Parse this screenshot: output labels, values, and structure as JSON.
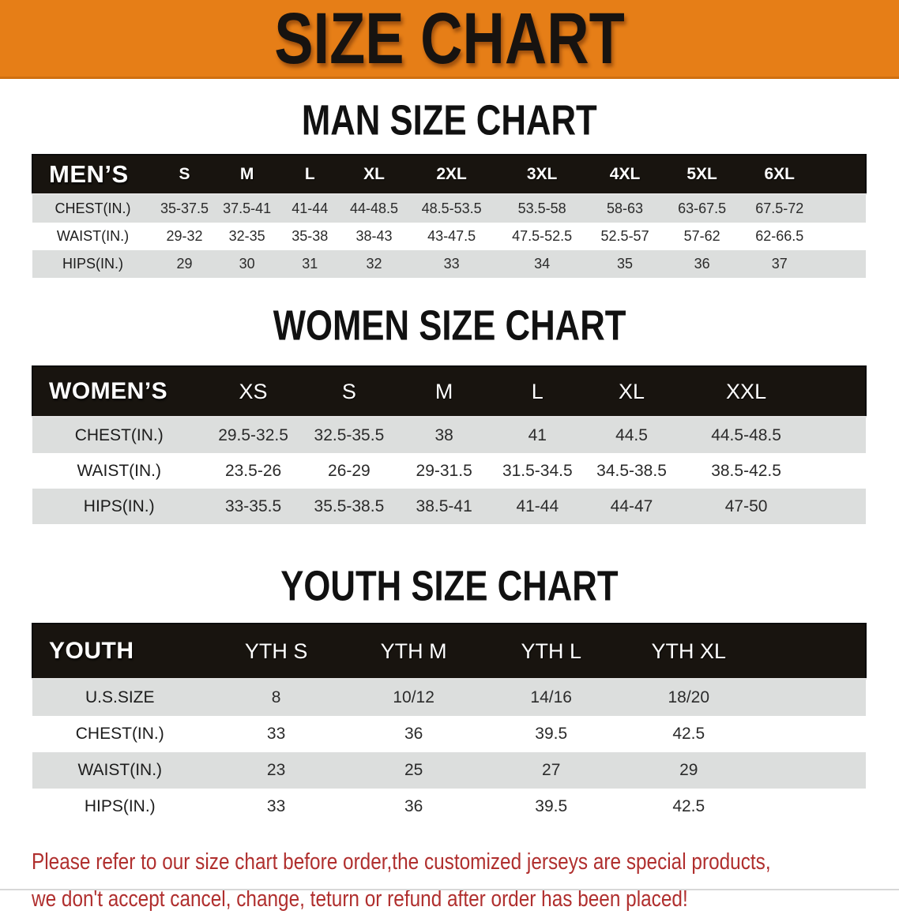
{
  "banner": {
    "title": "SIZE CHART"
  },
  "colors": {
    "banner_orange": "#E67E17",
    "bar_black": "#18140F",
    "row_gray": "#DCDEDD",
    "row_white": "#FFFFFF",
    "note_red": "#B02F2E"
  },
  "sections": [
    {
      "heading": "MAN SIZE CHART",
      "header_label": "MEN’S",
      "size_headers": [
        "S",
        "M",
        "L",
        "XL",
        "2XL",
        "3XL",
        "4XL",
        "5XL",
        "6XL"
      ],
      "rows": [
        {
          "label": "CHEST(IN.)",
          "values": [
            "35-37.5",
            "37.5-41",
            "41-44",
            "44-48.5",
            "48.5-53.5",
            "53.5-58",
            "58-63",
            "63-67.5",
            "67.5-72"
          ]
        },
        {
          "label": "WAIST(IN.)",
          "values": [
            "29-32",
            "32-35",
            "35-38",
            "38-43",
            "43-47.5",
            "47.5-52.5",
            "52.5-57",
            "57-62",
            "62-66.5"
          ]
        },
        {
          "label": "HIPS(IN.)",
          "values": [
            "29",
            "30",
            "31",
            "32",
            "33",
            "34",
            "35",
            "36",
            "37"
          ]
        }
      ]
    },
    {
      "heading": "WOMEN SIZE CHART",
      "header_label": "WOMEN’S",
      "size_headers": [
        "XS",
        "S",
        "M",
        "L",
        "XL",
        "XXL"
      ],
      "rows": [
        {
          "label": "CHEST(IN.)",
          "values": [
            "29.5-32.5",
            "32.5-35.5",
            "38",
            "41",
            "44.5",
            "44.5-48.5"
          ]
        },
        {
          "label": "WAIST(IN.)",
          "values": [
            "23.5-26",
            "26-29",
            "29-31.5",
            "31.5-34.5",
            "34.5-38.5",
            "38.5-42.5"
          ]
        },
        {
          "label": "HIPS(IN.)",
          "values": [
            "33-35.5",
            "35.5-38.5",
            "38.5-41",
            "41-44",
            "44-47",
            "47-50"
          ]
        }
      ]
    },
    {
      "heading": "YOUTH SIZE CHART",
      "header_label": "YOUTH",
      "size_headers": [
        "YTH S",
        "YTH M",
        "YTH L",
        "YTH XL"
      ],
      "rows": [
        {
          "label": "U.S.SIZE",
          "values": [
            "8",
            "10/12",
            "14/16",
            "18/20"
          ]
        },
        {
          "label": "CHEST(IN.)",
          "values": [
            "33",
            "36",
            "39.5",
            "42.5"
          ]
        },
        {
          "label": "WAIST(IN.)",
          "values": [
            "23",
            "25",
            "27",
            "29"
          ]
        },
        {
          "label": "HIPS(IN.)",
          "values": [
            "33",
            "36",
            "39.5",
            "42.5"
          ]
        }
      ]
    }
  ],
  "footer": {
    "line1": "Please refer to our size chart before order,the customized jerseys are special products,",
    "line2": "we don't accept cancel, change, teturn or refund after order has been placed!"
  }
}
